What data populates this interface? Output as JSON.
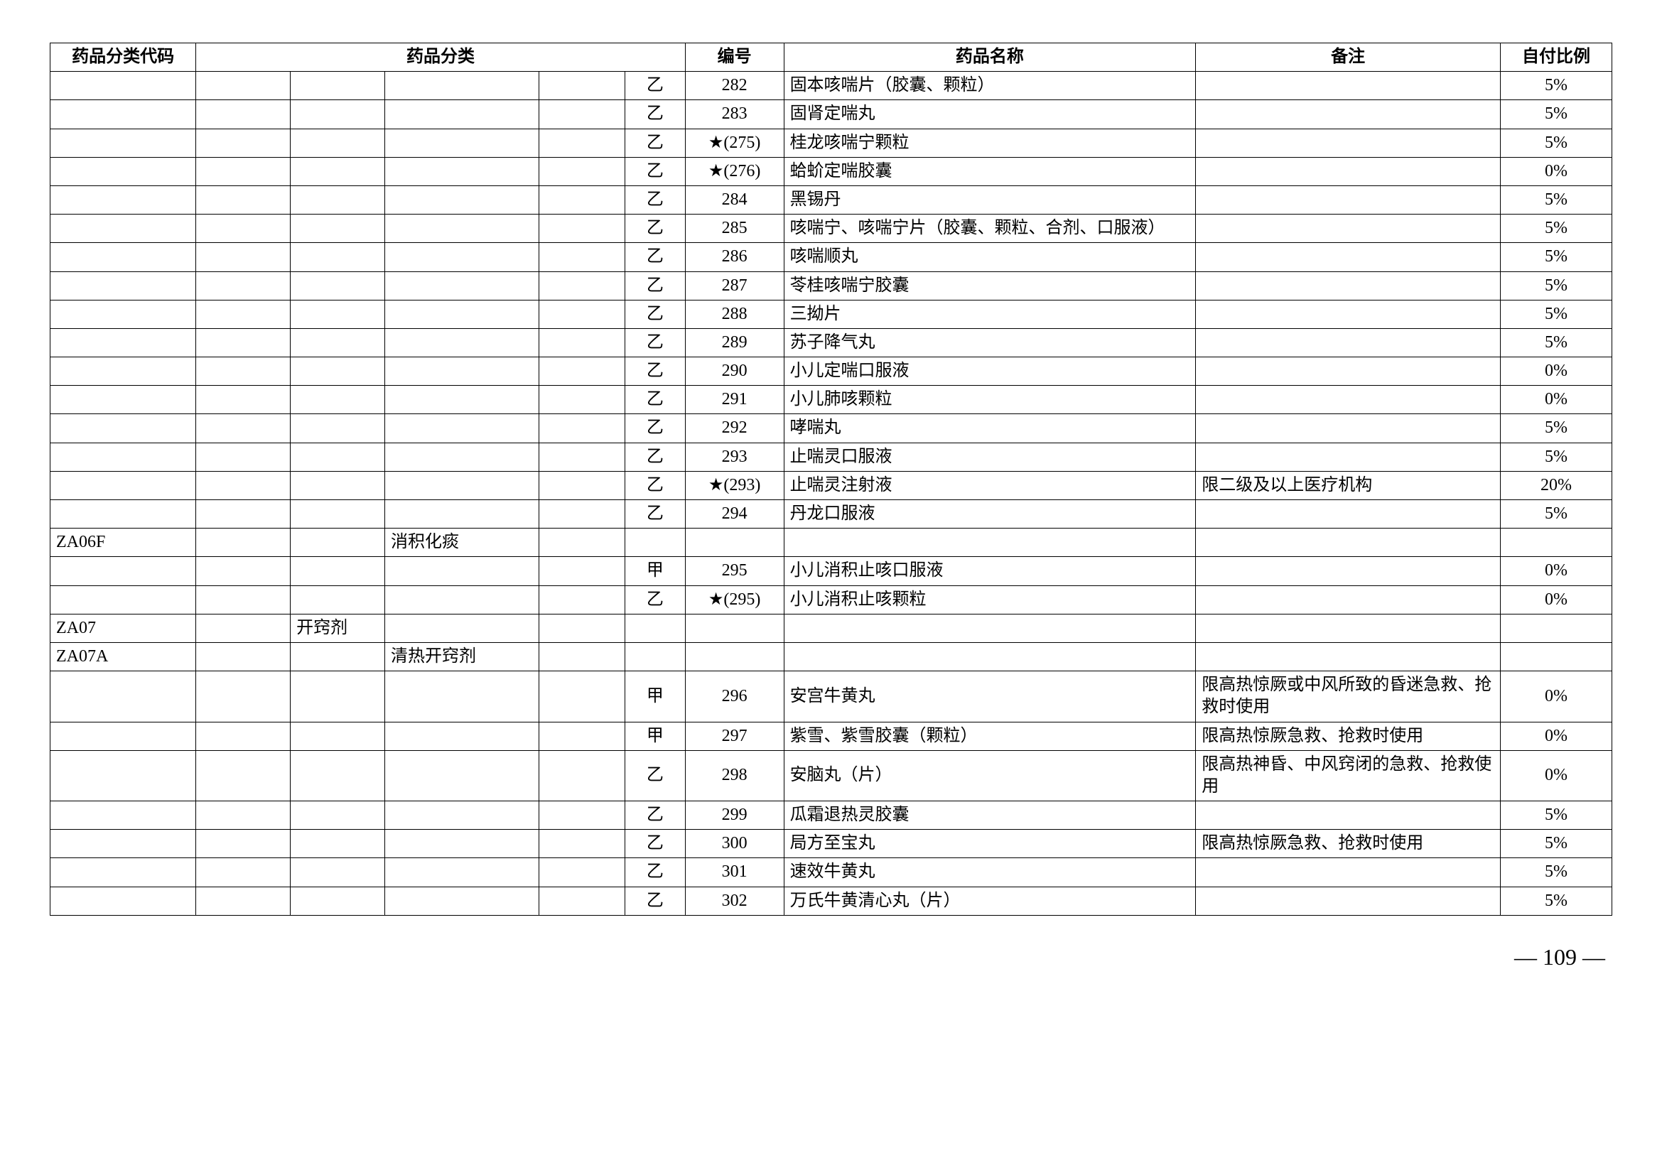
{
  "headers": {
    "code": "药品分类代码",
    "category": "药品分类",
    "number": "编号",
    "name": "药品名称",
    "note": "备注",
    "ratio": "自付比例"
  },
  "rows": [
    {
      "code": "",
      "cat1": "",
      "cat2": "",
      "cat3": "",
      "cat4": "",
      "grade": "乙",
      "num": "282",
      "name": "固本咳喘片（胶囊、颗粒）",
      "note": "",
      "ratio": "5%"
    },
    {
      "code": "",
      "cat1": "",
      "cat2": "",
      "cat3": "",
      "cat4": "",
      "grade": "乙",
      "num": "283",
      "name": "固肾定喘丸",
      "note": "",
      "ratio": "5%"
    },
    {
      "code": "",
      "cat1": "",
      "cat2": "",
      "cat3": "",
      "cat4": "",
      "grade": "乙",
      "num": "★(275)",
      "name": "桂龙咳喘宁颗粒",
      "note": "",
      "ratio": "5%"
    },
    {
      "code": "",
      "cat1": "",
      "cat2": "",
      "cat3": "",
      "cat4": "",
      "grade": "乙",
      "num": "★(276)",
      "name": "蛤蚧定喘胶囊",
      "note": "",
      "ratio": "0%"
    },
    {
      "code": "",
      "cat1": "",
      "cat2": "",
      "cat3": "",
      "cat4": "",
      "grade": "乙",
      "num": "284",
      "name": "黑锡丹",
      "note": "",
      "ratio": "5%"
    },
    {
      "code": "",
      "cat1": "",
      "cat2": "",
      "cat3": "",
      "cat4": "",
      "grade": "乙",
      "num": "285",
      "name": "咳喘宁、咳喘宁片（胶囊、颗粒、合剂、口服液）",
      "note": "",
      "ratio": "5%"
    },
    {
      "code": "",
      "cat1": "",
      "cat2": "",
      "cat3": "",
      "cat4": "",
      "grade": "乙",
      "num": "286",
      "name": "咳喘顺丸",
      "note": "",
      "ratio": "5%"
    },
    {
      "code": "",
      "cat1": "",
      "cat2": "",
      "cat3": "",
      "cat4": "",
      "grade": "乙",
      "num": "287",
      "name": "苓桂咳喘宁胶囊",
      "note": "",
      "ratio": "5%"
    },
    {
      "code": "",
      "cat1": "",
      "cat2": "",
      "cat3": "",
      "cat4": "",
      "grade": "乙",
      "num": "288",
      "name": "三拗片",
      "note": "",
      "ratio": "5%"
    },
    {
      "code": "",
      "cat1": "",
      "cat2": "",
      "cat3": "",
      "cat4": "",
      "grade": "乙",
      "num": "289",
      "name": "苏子降气丸",
      "note": "",
      "ratio": "5%"
    },
    {
      "code": "",
      "cat1": "",
      "cat2": "",
      "cat3": "",
      "cat4": "",
      "grade": "乙",
      "num": "290",
      "name": "小儿定喘口服液",
      "note": "",
      "ratio": "0%"
    },
    {
      "code": "",
      "cat1": "",
      "cat2": "",
      "cat3": "",
      "cat4": "",
      "grade": "乙",
      "num": "291",
      "name": "小儿肺咳颗粒",
      "note": "",
      "ratio": "0%"
    },
    {
      "code": "",
      "cat1": "",
      "cat2": "",
      "cat3": "",
      "cat4": "",
      "grade": "乙",
      "num": "292",
      "name": "哮喘丸",
      "note": "",
      "ratio": "5%"
    },
    {
      "code": "",
      "cat1": "",
      "cat2": "",
      "cat3": "",
      "cat4": "",
      "grade": "乙",
      "num": "293",
      "name": "止喘灵口服液",
      "note": "",
      "ratio": "5%"
    },
    {
      "code": "",
      "cat1": "",
      "cat2": "",
      "cat3": "",
      "cat4": "",
      "grade": "乙",
      "num": "★(293)",
      "name": "止喘灵注射液",
      "note": "限二级及以上医疗机构",
      "ratio": "20%"
    },
    {
      "code": "",
      "cat1": "",
      "cat2": "",
      "cat3": "",
      "cat4": "",
      "grade": "乙",
      "num": "294",
      "name": "丹龙口服液",
      "note": "",
      "ratio": "5%"
    },
    {
      "code": "ZA06F",
      "cat1": "",
      "cat2": "",
      "cat3": "消积化痰",
      "cat4": "",
      "grade": "",
      "num": "",
      "name": "",
      "note": "",
      "ratio": ""
    },
    {
      "code": "",
      "cat1": "",
      "cat2": "",
      "cat3": "",
      "cat4": "",
      "grade": "甲",
      "num": "295",
      "name": "小儿消积止咳口服液",
      "note": "",
      "ratio": "0%"
    },
    {
      "code": "",
      "cat1": "",
      "cat2": "",
      "cat3": "",
      "cat4": "",
      "grade": "乙",
      "num": "★(295)",
      "name": "小儿消积止咳颗粒",
      "note": "",
      "ratio": "0%"
    },
    {
      "code": "ZA07",
      "cat1": "",
      "cat2": "开窍剂",
      "cat3": "",
      "cat4": "",
      "grade": "",
      "num": "",
      "name": "",
      "note": "",
      "ratio": ""
    },
    {
      "code": "ZA07A",
      "cat1": "",
      "cat2": "",
      "cat3": "清热开窍剂",
      "cat4": "",
      "grade": "",
      "num": "",
      "name": "",
      "note": "",
      "ratio": ""
    },
    {
      "code": "",
      "cat1": "",
      "cat2": "",
      "cat3": "",
      "cat4": "",
      "grade": "甲",
      "num": "296",
      "name": "安宫牛黄丸",
      "note": "限高热惊厥或中风所致的昏迷急救、抢救时使用",
      "ratio": "0%"
    },
    {
      "code": "",
      "cat1": "",
      "cat2": "",
      "cat3": "",
      "cat4": "",
      "grade": "甲",
      "num": "297",
      "name": "紫雪、紫雪胶囊（颗粒）",
      "note": "限高热惊厥急救、抢救时使用",
      "ratio": "0%"
    },
    {
      "code": "",
      "cat1": "",
      "cat2": "",
      "cat3": "",
      "cat4": "",
      "grade": "乙",
      "num": "298",
      "name": "安脑丸（片）",
      "note": "限高热神昏、中风窍闭的急救、抢救使用",
      "ratio": "0%"
    },
    {
      "code": "",
      "cat1": "",
      "cat2": "",
      "cat3": "",
      "cat4": "",
      "grade": "乙",
      "num": "299",
      "name": "瓜霜退热灵胶囊",
      "note": "",
      "ratio": "5%"
    },
    {
      "code": "",
      "cat1": "",
      "cat2": "",
      "cat3": "",
      "cat4": "",
      "grade": "乙",
      "num": "300",
      "name": "局方至宝丸",
      "note": "限高热惊厥急救、抢救时使用",
      "ratio": "5%"
    },
    {
      "code": "",
      "cat1": "",
      "cat2": "",
      "cat3": "",
      "cat4": "",
      "grade": "乙",
      "num": "301",
      "name": "速效牛黄丸",
      "note": "",
      "ratio": "5%"
    },
    {
      "code": "",
      "cat1": "",
      "cat2": "",
      "cat3": "",
      "cat4": "",
      "grade": "乙",
      "num": "302",
      "name": "万氏牛黄清心丸（片）",
      "note": "",
      "ratio": "5%"
    }
  ],
  "pageNumber": "— 109 —"
}
